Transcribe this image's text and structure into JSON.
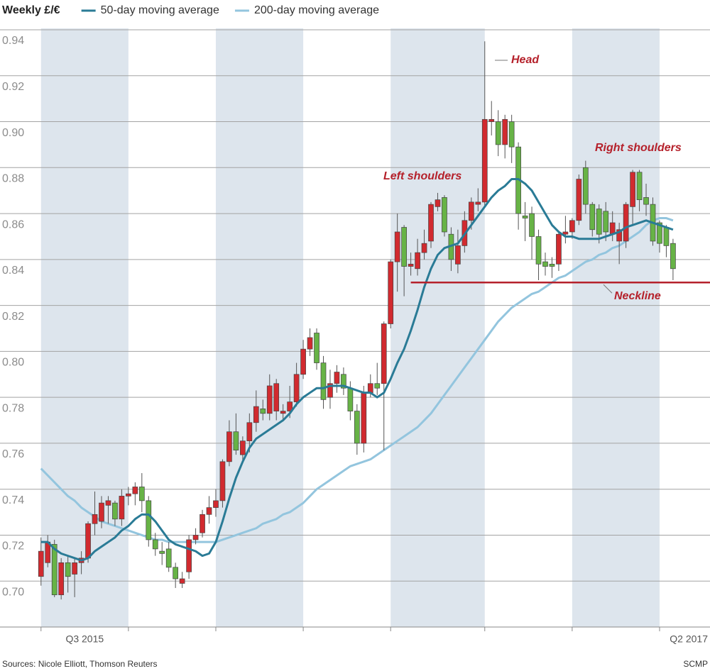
{
  "chart_data": {
    "type": "candlestick",
    "title": "Weekly £/€",
    "up_color": "#d12a2f",
    "down_color": "#67b346",
    "open": [
      0.702,
      0.708,
      0.716,
      0.694,
      0.708,
      0.703,
      0.708,
      0.71,
      0.725,
      0.726,
      0.733,
      0.734,
      0.727,
      0.737,
      0.738,
      0.741,
      0.735,
      0.718,
      0.713,
      0.714,
      0.706,
      0.699,
      0.704,
      0.718,
      0.721,
      0.729,
      0.732,
      0.735,
      0.752,
      0.765,
      0.755,
      0.761,
      0.769,
      0.775,
      0.773,
      0.774,
      0.773,
      0.774,
      0.778,
      0.79,
      0.801,
      0.808,
      0.795,
      0.78,
      0.786,
      0.79,
      0.784,
      0.774,
      0.76,
      0.782,
      0.786,
      0.786,
      0.812,
      0.839,
      0.854,
      0.837,
      0.836,
      0.843,
      0.848,
      0.863,
      0.867,
      0.851,
      0.838,
      0.846,
      0.857,
      0.864,
      0.865,
      0.9,
      0.9,
      0.89,
      0.9,
      0.889,
      0.859,
      0.86,
      0.85,
      0.839,
      0.838,
      0.838,
      0.851,
      0.852,
      0.857,
      0.88,
      0.864,
      0.862,
      0.861,
      0.851,
      0.848,
      0.848,
      0.863,
      0.878,
      0.867,
      0.864,
      0.856,
      0.854,
      0.847
    ],
    "high": [
      0.719,
      0.72,
      0.718,
      0.71,
      0.711,
      0.71,
      0.713,
      0.726,
      0.739,
      0.737,
      0.737,
      0.735,
      0.74,
      0.741,
      0.743,
      0.747,
      0.737,
      0.721,
      0.717,
      0.717,
      0.708,
      0.704,
      0.72,
      0.723,
      0.731,
      0.737,
      0.74,
      0.753,
      0.77,
      0.773,
      0.763,
      0.773,
      0.783,
      0.779,
      0.79,
      0.788,
      0.777,
      0.785,
      0.795,
      0.805,
      0.81,
      0.81,
      0.798,
      0.792,
      0.794,
      0.793,
      0.787,
      0.777,
      0.785,
      0.79,
      0.795,
      0.813,
      0.84,
      0.86,
      0.855,
      0.843,
      0.849,
      0.853,
      0.865,
      0.869,
      0.868,
      0.854,
      0.853,
      0.861,
      0.867,
      0.871,
      0.935,
      0.909,
      0.905,
      0.903,
      0.903,
      0.891,
      0.865,
      0.863,
      0.853,
      0.843,
      0.841,
      0.852,
      0.859,
      0.858,
      0.877,
      0.883,
      0.865,
      0.864,
      0.865,
      0.861,
      0.856,
      0.865,
      0.879,
      0.879,
      0.873,
      0.867,
      0.857,
      0.855,
      0.849
    ],
    "low": [
      0.698,
      0.706,
      0.693,
      0.692,
      0.695,
      0.693,
      0.703,
      0.708,
      0.72,
      0.723,
      0.725,
      0.724,
      0.724,
      0.733,
      0.733,
      0.73,
      0.715,
      0.711,
      0.707,
      0.704,
      0.697,
      0.697,
      0.701,
      0.716,
      0.719,
      0.725,
      0.728,
      0.732,
      0.75,
      0.755,
      0.752,
      0.756,
      0.765,
      0.77,
      0.77,
      0.77,
      0.77,
      0.771,
      0.776,
      0.788,
      0.798,
      0.792,
      0.775,
      0.775,
      0.782,
      0.781,
      0.77,
      0.755,
      0.756,
      0.78,
      0.781,
      0.757,
      0.81,
      0.826,
      0.824,
      0.833,
      0.833,
      0.84,
      0.845,
      0.861,
      0.85,
      0.835,
      0.834,
      0.843,
      0.853,
      0.861,
      0.863,
      0.894,
      0.885,
      0.884,
      0.882,
      0.853,
      0.848,
      0.84,
      0.831,
      0.833,
      0.832,
      0.835,
      0.847,
      0.849,
      0.855,
      0.86,
      0.85,
      0.847,
      0.848,
      0.848,
      0.838,
      0.845,
      0.855,
      0.861,
      0.859,
      0.846,
      0.843,
      0.841,
      0.831
    ],
    "close": [
      0.713,
      0.717,
      0.694,
      0.708,
      0.702,
      0.708,
      0.71,
      0.725,
      0.729,
      0.734,
      0.735,
      0.727,
      0.737,
      0.738,
      0.741,
      0.735,
      0.718,
      0.714,
      0.712,
      0.706,
      0.701,
      0.701,
      0.718,
      0.72,
      0.729,
      0.732,
      0.735,
      0.752,
      0.765,
      0.757,
      0.761,
      0.769,
      0.776,
      0.773,
      0.785,
      0.786,
      0.774,
      0.778,
      0.79,
      0.801,
      0.806,
      0.795,
      0.779,
      0.786,
      0.791,
      0.784,
      0.774,
      0.76,
      0.782,
      0.786,
      0.784,
      0.812,
      0.839,
      0.852,
      0.837,
      0.838,
      0.843,
      0.847,
      0.864,
      0.866,
      0.852,
      0.84,
      0.846,
      0.857,
      0.865,
      0.865,
      0.901,
      0.901,
      0.89,
      0.901,
      0.889,
      0.86,
      0.858,
      0.85,
      0.838,
      0.837,
      0.837,
      0.851,
      0.852,
      0.857,
      0.875,
      0.864,
      0.853,
      0.851,
      0.852,
      0.856,
      0.853,
      0.864,
      0.878,
      0.866,
      0.864,
      0.848,
      0.847,
      0.846,
      0.836
    ],
    "series": [
      {
        "name": "50-day moving average",
        "color": "#2a7b96",
        "values": [
          0.717,
          0.717,
          0.714,
          0.712,
          0.711,
          0.71,
          0.709,
          0.71,
          0.713,
          0.715,
          0.717,
          0.719,
          0.722,
          0.724,
          0.727,
          0.729,
          0.729,
          0.726,
          0.722,
          0.718,
          0.716,
          0.715,
          0.714,
          0.713,
          0.711,
          0.712,
          0.717,
          0.726,
          0.736,
          0.745,
          0.752,
          0.758,
          0.762,
          0.764,
          0.766,
          0.768,
          0.77,
          0.773,
          0.777,
          0.78,
          0.782,
          0.784,
          0.784,
          0.785,
          0.785,
          0.785,
          0.784,
          0.783,
          0.782,
          0.782,
          0.78,
          0.782,
          0.788,
          0.795,
          0.801,
          0.809,
          0.818,
          0.828,
          0.836,
          0.842,
          0.845,
          0.846,
          0.847,
          0.851,
          0.855,
          0.859,
          0.863,
          0.867,
          0.87,
          0.872,
          0.875,
          0.875,
          0.873,
          0.87,
          0.865,
          0.86,
          0.855,
          0.852,
          0.85,
          0.85,
          0.849,
          0.849,
          0.849,
          0.849,
          0.85,
          0.851,
          0.852,
          0.854,
          0.855,
          0.856,
          0.857,
          0.856,
          0.855,
          0.854,
          0.853
        ]
      },
      {
        "name": "200-day moving average",
        "color": "#93c5de",
        "values": [
          0.749,
          0.746,
          0.743,
          0.74,
          0.737,
          0.735,
          0.732,
          0.73,
          0.728,
          0.726,
          0.725,
          0.724,
          0.723,
          0.722,
          0.721,
          0.72,
          0.719,
          0.718,
          0.718,
          0.717,
          0.717,
          0.717,
          0.717,
          0.717,
          0.717,
          0.717,
          0.717,
          0.718,
          0.719,
          0.72,
          0.721,
          0.722,
          0.723,
          0.725,
          0.726,
          0.727,
          0.729,
          0.73,
          0.732,
          0.734,
          0.737,
          0.74,
          0.742,
          0.744,
          0.746,
          0.748,
          0.75,
          0.751,
          0.752,
          0.753,
          0.755,
          0.757,
          0.759,
          0.761,
          0.763,
          0.765,
          0.767,
          0.77,
          0.773,
          0.777,
          0.781,
          0.785,
          0.789,
          0.793,
          0.797,
          0.801,
          0.805,
          0.809,
          0.813,
          0.816,
          0.819,
          0.821,
          0.823,
          0.825,
          0.826,
          0.828,
          0.83,
          0.832,
          0.833,
          0.835,
          0.837,
          0.839,
          0.84,
          0.842,
          0.843,
          0.845,
          0.846,
          0.848,
          0.85,
          0.852,
          0.855,
          0.857,
          0.858,
          0.858,
          0.857
        ]
      }
    ],
    "xlim": [
      -6.1,
      99.5
    ],
    "ylim": [
      0.68,
      0.94
    ],
    "yticks": [
      {
        "value": 0.7,
        "label": "0.70"
      },
      0.72,
      0.74,
      0.76,
      0.78,
      {
        "value": 0.8,
        "label": "0.80"
      },
      0.82,
      0.84,
      0.86,
      0.88,
      {
        "value": 0.9,
        "label": "0.90"
      },
      0.92,
      0.94
    ],
    "grid": true,
    "quarter_starts": [
      0,
      13,
      26,
      39,
      52,
      66,
      79,
      92
    ],
    "shade_color": "#dde5ed",
    "xticks": [
      {
        "value": 6.5,
        "label": "Q3 2015"
      },
      {
        "value": 98.5,
        "label": "Q2 2017"
      }
    ],
    "annotations": [
      {
        "text": "Head"
      },
      {
        "text": "Left shoulders"
      },
      {
        "text": "Right shoulders"
      }
    ],
    "neckline": {
      "label": "Neckline",
      "value": 0.83,
      "start": 55,
      "color": "#b5212b"
    },
    "source": "Sources: Nicole Elliott, Thomson Reuters",
    "credit": "SCMP"
  }
}
